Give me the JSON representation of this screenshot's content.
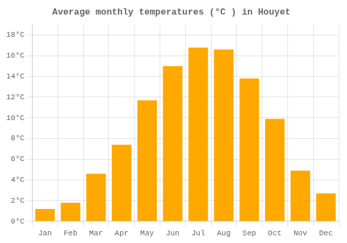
{
  "chart_data": {
    "type": "bar",
    "title": "Average monthly temperatures (°C ) in Houyet",
    "categories": [
      "Jan",
      "Feb",
      "Mar",
      "Apr",
      "May",
      "Jun",
      "Jul",
      "Aug",
      "Sep",
      "Oct",
      "Nov",
      "Dec"
    ],
    "values": [
      1.2,
      1.8,
      4.6,
      7.4,
      11.7,
      15.0,
      16.8,
      16.6,
      13.8,
      9.9,
      4.9,
      2.7
    ],
    "color": "#FFA800",
    "ylim": [
      0,
      19
    ],
    "yticks": [
      {
        "value": 0,
        "label": "0°C"
      },
      {
        "value": 2,
        "label": "2°C"
      },
      {
        "value": 4,
        "label": "4°C"
      },
      {
        "value": 6,
        "label": "6°C"
      },
      {
        "value": 8,
        "label": "8°C"
      },
      {
        "value": 10,
        "label": "10°C"
      },
      {
        "value": 12,
        "label": "12°C"
      },
      {
        "value": 14,
        "label": "14°C"
      },
      {
        "value": 16,
        "label": "16°C"
      },
      {
        "value": 18,
        "label": "18°C"
      }
    ],
    "grid": true
  }
}
